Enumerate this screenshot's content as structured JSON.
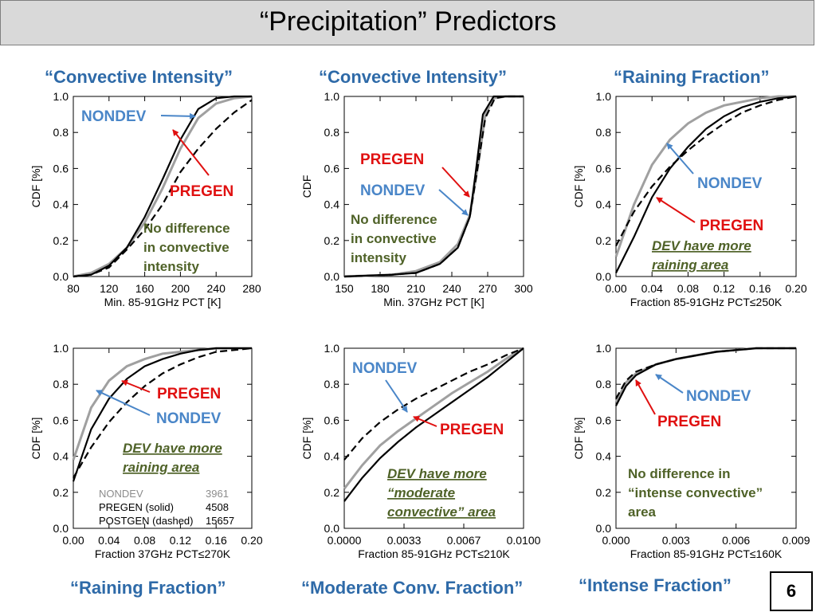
{
  "slide": {
    "title": "“Precipitation” Predictors",
    "page_number": "6",
    "captions": {
      "top_left": "“Convective Intensity”",
      "top_middle": "“Convective Intensity”",
      "top_right": "“Raining Fraction”",
      "bottom_left": "“Raining Fraction”",
      "bottom_middle": "“Moderate Conv. Fraction”",
      "bottom_right": "“Intense Fraction”"
    },
    "colors": {
      "title_bar": "#d9d9d9",
      "caption": "#2e6aa8",
      "nondev": "#a0a0a0",
      "pregen": "#000000",
      "postgen": "#000000",
      "nondev_label": "#4a86c8",
      "pregen_label": "#e01010",
      "note": "#4f6228"
    }
  },
  "chart_data": [
    {
      "type": "line",
      "xlabel": "Min. 85-91GHz PCT [K]",
      "ylabel": "CDF [%]",
      "xlim": [
        80,
        280
      ],
      "ylim": [
        0,
        1
      ],
      "xticks": [
        "80",
        "120",
        "160",
        "200",
        "240",
        "280"
      ],
      "yticks": [
        "0.0",
        "0.2",
        "0.4",
        "0.6",
        "0.8",
        "1.0"
      ],
      "series": [
        {
          "name": "NONDEV",
          "style": "gray",
          "x": [
            80,
            100,
            120,
            140,
            160,
            180,
            200,
            220,
            240,
            260,
            280
          ],
          "y": [
            0.0,
            0.02,
            0.07,
            0.16,
            0.3,
            0.49,
            0.71,
            0.88,
            0.96,
            0.99,
            1.0
          ]
        },
        {
          "name": "PREGEN",
          "style": "solid",
          "x": [
            80,
            100,
            120,
            140,
            160,
            180,
            200,
            220,
            240,
            260,
            280
          ],
          "y": [
            0.0,
            0.01,
            0.06,
            0.16,
            0.33,
            0.54,
            0.76,
            0.93,
            0.99,
            1.0,
            1.0
          ]
        },
        {
          "name": "POSTGEN",
          "style": "dashed",
          "x": [
            80,
            100,
            120,
            140,
            160,
            180,
            200,
            220,
            240,
            260,
            280
          ],
          "y": [
            0.0,
            0.01,
            0.05,
            0.15,
            0.26,
            0.4,
            0.58,
            0.71,
            0.82,
            0.91,
            0.98
          ]
        }
      ],
      "annotations": [
        {
          "text": "NONDEV",
          "kind": "nondev"
        },
        {
          "text": "PREGEN",
          "kind": "pregen"
        },
        {
          "lines": [
            "No difference",
            "in convective",
            "intensity"
          ],
          "kind": "note"
        }
      ]
    },
    {
      "type": "line",
      "xlabel": "Min. 37GHz PCT [K]",
      "ylabel": "CDF",
      "xlim": [
        150,
        300
      ],
      "ylim": [
        0,
        1
      ],
      "xticks": [
        "150",
        "180",
        "210",
        "240",
        "270",
        "300"
      ],
      "yticks": [
        "0.0",
        "0.2",
        "0.4",
        "0.6",
        "0.8",
        "1.0"
      ],
      "series": [
        {
          "name": "NONDEV",
          "style": "gray",
          "x": [
            150,
            190,
            210,
            230,
            245,
            255,
            262,
            268,
            275,
            285,
            300
          ],
          "y": [
            0.0,
            0.01,
            0.03,
            0.08,
            0.18,
            0.34,
            0.62,
            0.9,
            0.99,
            1.0,
            1.0
          ]
        },
        {
          "name": "PREGEN",
          "style": "solid",
          "x": [
            150,
            190,
            210,
            230,
            245,
            255,
            260,
            266,
            275,
            285,
            300
          ],
          "y": [
            0.0,
            0.01,
            0.02,
            0.07,
            0.16,
            0.33,
            0.58,
            0.9,
            1.0,
            1.0,
            1.0
          ]
        },
        {
          "name": "POSTGEN",
          "style": "dashed",
          "x": [
            150,
            190,
            210,
            230,
            245,
            255,
            261,
            268,
            276,
            285,
            300
          ],
          "y": [
            0.0,
            0.01,
            0.02,
            0.07,
            0.16,
            0.33,
            0.58,
            0.88,
            0.99,
            1.0,
            1.0
          ]
        }
      ],
      "annotations": [
        {
          "text": "PREGEN",
          "kind": "pregen"
        },
        {
          "text": "NONDEV",
          "kind": "nondev"
        },
        {
          "lines": [
            "No difference",
            "in convective",
            "intensity"
          ],
          "kind": "note"
        }
      ]
    },
    {
      "type": "line",
      "xlabel": "Fraction 85-91GHz PCT≤250K",
      "ylabel": "CDF [%]",
      "xlim": [
        0,
        0.2
      ],
      "ylim": [
        0,
        1
      ],
      "xticks": [
        "0.00",
        "0.04",
        "0.08",
        "0.12",
        "0.16",
        "0.20"
      ],
      "yticks": [
        "0.0",
        "0.2",
        "0.4",
        "0.6",
        "0.8",
        "1.0"
      ],
      "series": [
        {
          "name": "NONDEV",
          "style": "gray",
          "x": [
            0.0,
            0.02,
            0.04,
            0.06,
            0.08,
            0.1,
            0.12,
            0.14,
            0.16,
            0.18,
            0.2
          ],
          "y": [
            0.11,
            0.4,
            0.62,
            0.76,
            0.85,
            0.91,
            0.95,
            0.97,
            0.99,
            1.0,
            1.0
          ]
        },
        {
          "name": "PREGEN",
          "style": "solid",
          "x": [
            0.0,
            0.02,
            0.04,
            0.06,
            0.08,
            0.1,
            0.12,
            0.14,
            0.16,
            0.18,
            0.2
          ],
          "y": [
            0.02,
            0.22,
            0.44,
            0.6,
            0.72,
            0.82,
            0.89,
            0.94,
            0.97,
            0.99,
            1.0
          ]
        },
        {
          "name": "POSTGEN",
          "style": "dashed",
          "x": [
            0.0,
            0.02,
            0.04,
            0.06,
            0.08,
            0.1,
            0.12,
            0.14,
            0.16,
            0.18,
            0.2
          ],
          "y": [
            0.17,
            0.36,
            0.5,
            0.61,
            0.7,
            0.78,
            0.85,
            0.91,
            0.95,
            0.98,
            1.0
          ]
        }
      ],
      "annotations": [
        {
          "text": "NONDEV",
          "kind": "nondev"
        },
        {
          "text": "PREGEN",
          "kind": "pregen"
        },
        {
          "lines": [
            "DEV have more",
            "raining area"
          ],
          "kind": "note_italic"
        }
      ]
    },
    {
      "type": "line",
      "xlabel": "Fraction 37GHz PCT≤270K",
      "ylabel": "CDF [%]",
      "xlim": [
        0,
        0.2
      ],
      "ylim": [
        0,
        1
      ],
      "xticks": [
        "0.00",
        "0.04",
        "0.08",
        "0.12",
        "0.16",
        "0.20"
      ],
      "yticks": [
        "0.0",
        "0.2",
        "0.4",
        "0.6",
        "0.8",
        "1.0"
      ],
      "series": [
        {
          "name": "NONDEV",
          "style": "gray",
          "x": [
            0.0,
            0.02,
            0.04,
            0.06,
            0.08,
            0.1,
            0.12,
            0.14,
            0.16,
            0.18,
            0.2
          ],
          "y": [
            0.38,
            0.67,
            0.82,
            0.9,
            0.94,
            0.97,
            0.98,
            0.99,
            1.0,
            1.0,
            1.0
          ]
        },
        {
          "name": "PREGEN",
          "style": "solid",
          "x": [
            0.0,
            0.02,
            0.04,
            0.06,
            0.08,
            0.1,
            0.12,
            0.14,
            0.16,
            0.18,
            0.2
          ],
          "y": [
            0.26,
            0.55,
            0.72,
            0.83,
            0.9,
            0.94,
            0.97,
            0.99,
            1.0,
            1.0,
            1.0
          ]
        },
        {
          "name": "POSTGEN",
          "style": "dashed",
          "x": [
            0.0,
            0.02,
            0.04,
            0.06,
            0.08,
            0.1,
            0.12,
            0.14,
            0.16,
            0.18,
            0.2
          ],
          "y": [
            0.28,
            0.45,
            0.59,
            0.7,
            0.79,
            0.86,
            0.91,
            0.95,
            0.98,
            0.99,
            1.0
          ]
        }
      ],
      "annotations": [
        {
          "text": "PREGEN",
          "kind": "pregen"
        },
        {
          "text": "NONDEV",
          "kind": "nondev"
        },
        {
          "lines": [
            "DEV have more",
            "raining area"
          ],
          "kind": "note_italic"
        }
      ],
      "legend_table": [
        [
          "NONDEV",
          "3961"
        ],
        [
          "PREGEN (solid)",
          "4508"
        ],
        [
          "POSTGEN (dashed)",
          "15657"
        ]
      ]
    },
    {
      "type": "line",
      "xlabel": "Fraction 85-91GHz PCT≤210K",
      "ylabel": "CDF [%]",
      "xlim": [
        0,
        0.01
      ],
      "ylim": [
        0,
        1
      ],
      "xticks": [
        "0.0000",
        "0.0033",
        "0.0067",
        "0.0100"
      ],
      "yticks": [
        "0.0",
        "0.2",
        "0.4",
        "0.6",
        "0.8",
        "1.0"
      ],
      "series": [
        {
          "name": "NONDEV",
          "style": "gray",
          "x": [
            0.0,
            0.001,
            0.002,
            0.003,
            0.004,
            0.005,
            0.006,
            0.007,
            0.008,
            0.009,
            0.01
          ],
          "y": [
            0.22,
            0.35,
            0.46,
            0.54,
            0.61,
            0.68,
            0.75,
            0.81,
            0.87,
            0.94,
            1.0
          ]
        },
        {
          "name": "PREGEN",
          "style": "solid",
          "x": [
            0.0,
            0.001,
            0.002,
            0.003,
            0.004,
            0.005,
            0.006,
            0.007,
            0.008,
            0.009,
            0.01
          ],
          "y": [
            0.15,
            0.28,
            0.39,
            0.48,
            0.56,
            0.63,
            0.7,
            0.77,
            0.84,
            0.92,
            1.0
          ]
        },
        {
          "name": "POSTGEN",
          "style": "dashed",
          "x": [
            0.0,
            0.001,
            0.002,
            0.003,
            0.004,
            0.005,
            0.006,
            0.007,
            0.008,
            0.009,
            0.01
          ],
          "y": [
            0.38,
            0.5,
            0.59,
            0.66,
            0.72,
            0.77,
            0.82,
            0.87,
            0.91,
            0.96,
            1.0
          ]
        }
      ],
      "annotations": [
        {
          "text": "NONDEV",
          "kind": "nondev"
        },
        {
          "text": "PREGEN",
          "kind": "pregen"
        },
        {
          "lines": [
            "DEV have more",
            "“moderate",
            "convective” area"
          ],
          "kind": "note_italic"
        }
      ]
    },
    {
      "type": "line",
      "xlabel": "Fraction 85-91GHz PCT≤160K",
      "ylabel": "CDF [%]",
      "xlim": [
        0,
        0.009
      ],
      "ylim": [
        0,
        1
      ],
      "xticks": [
        "0.000",
        "0.003",
        "0.006",
        "0.009"
      ],
      "yticks": [
        "0.0",
        "0.2",
        "0.4",
        "0.6",
        "0.8",
        "1.0"
      ],
      "series": [
        {
          "name": "NONDEV",
          "style": "gray",
          "x": [
            0.0,
            0.0005,
            0.001,
            0.002,
            0.003,
            0.004,
            0.005,
            0.006,
            0.007,
            0.008,
            0.009
          ],
          "y": [
            0.7,
            0.81,
            0.86,
            0.91,
            0.94,
            0.96,
            0.98,
            0.99,
            1.0,
            1.0,
            1.0
          ]
        },
        {
          "name": "PREGEN",
          "style": "solid",
          "x": [
            0.0,
            0.0005,
            0.001,
            0.002,
            0.003,
            0.004,
            0.005,
            0.006,
            0.007,
            0.008,
            0.009
          ],
          "y": [
            0.68,
            0.79,
            0.85,
            0.91,
            0.94,
            0.96,
            0.98,
            0.99,
            1.0,
            1.0,
            1.0
          ]
        },
        {
          "name": "POSTGEN",
          "style": "dashed",
          "x": [
            0.0,
            0.0005,
            0.001,
            0.002,
            0.003,
            0.004,
            0.005,
            0.006,
            0.007,
            0.008,
            0.009
          ],
          "y": [
            0.72,
            0.82,
            0.87,
            0.91,
            0.94,
            0.96,
            0.98,
            0.99,
            1.0,
            1.0,
            1.0
          ]
        }
      ],
      "annotations": [
        {
          "text": "NONDEV",
          "kind": "nondev"
        },
        {
          "text": "PREGEN",
          "kind": "pregen"
        },
        {
          "lines": [
            "No difference in",
            "“intense convective”",
            "area"
          ],
          "kind": "note"
        }
      ]
    }
  ]
}
